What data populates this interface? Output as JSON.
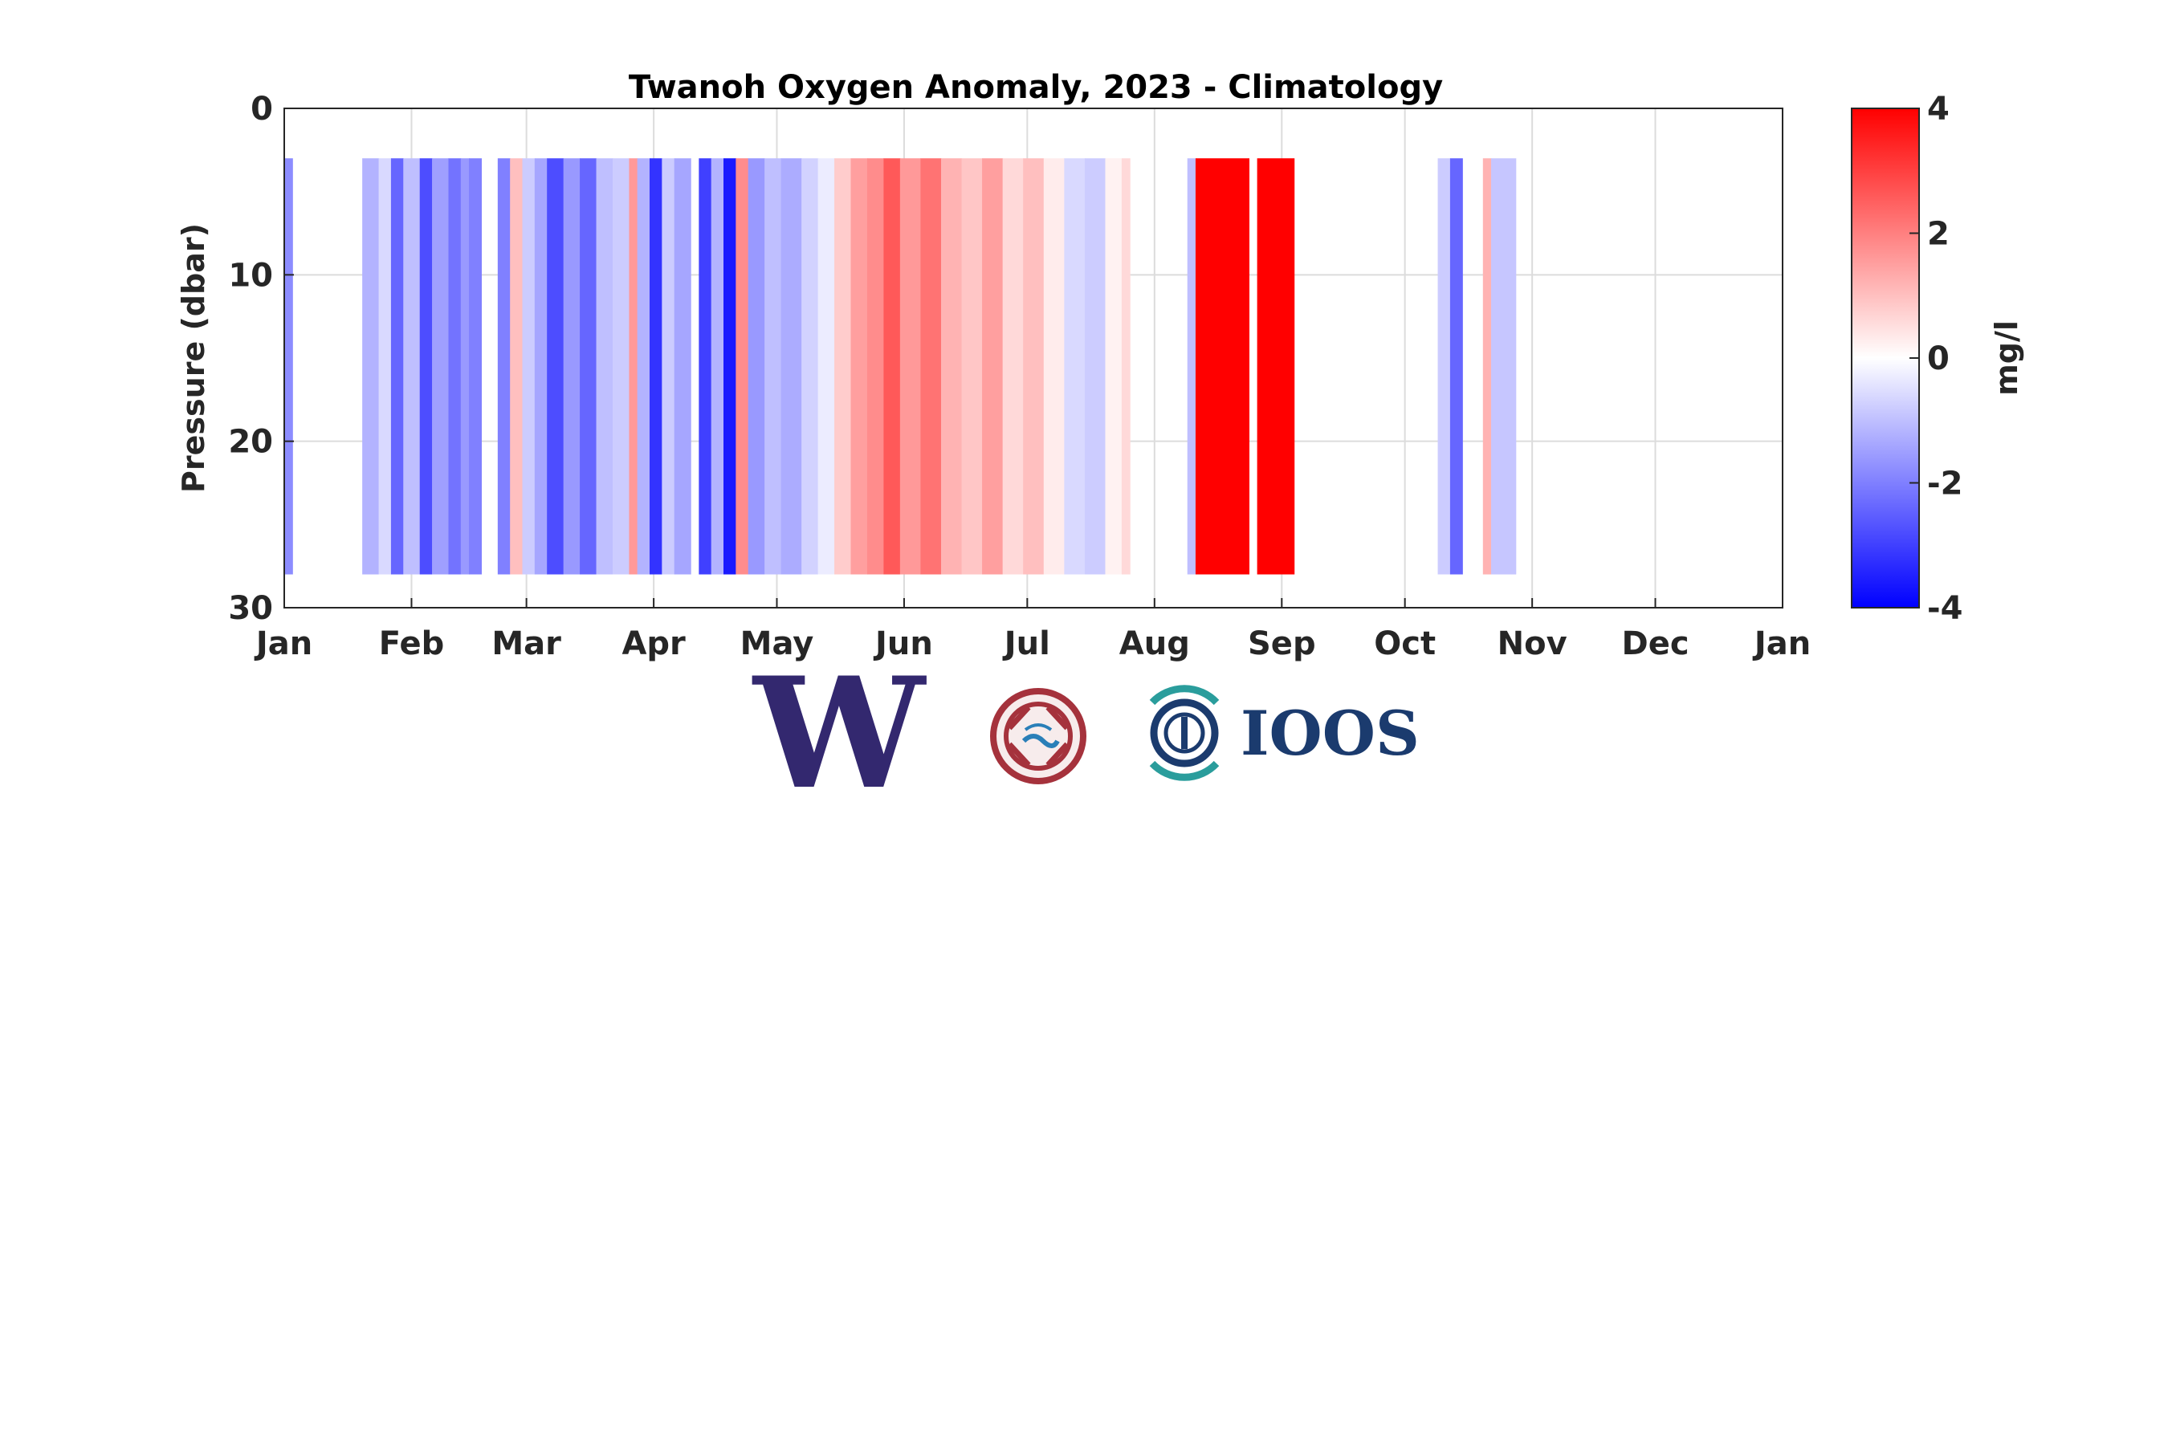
{
  "chart_data": {
    "type": "heatmap",
    "title": "Twanoh Oxygen Anomaly, 2023 - Climatology",
    "xlabel": "",
    "ylabel": "Pressure (dbar)",
    "x_ticks": [
      "Jan",
      "Feb",
      "Mar",
      "Apr",
      "May",
      "Jun",
      "Jul",
      "Aug",
      "Sep",
      "Oct",
      "Nov",
      "Dec",
      "Jan"
    ],
    "y_ticks": [
      "0",
      "10",
      "20",
      "30"
    ],
    "ylim": [
      0,
      30
    ],
    "y_reversed": true,
    "grid": true,
    "colorbar": {
      "label": "mg/l",
      "ticks": [
        "4",
        "2",
        "0",
        "-2",
        "-4"
      ],
      "range": [
        -4,
        4
      ],
      "colormap": "blue-white-red",
      "low_color": "#0000ff",
      "mid_color": "#ffffff",
      "high_color": "#ff0000"
    },
    "depth_range_dbar": [
      3,
      28
    ],
    "segments": [
      {
        "start_day": 0,
        "end_day": 2,
        "anomaly_mg_l": -1.8
      },
      {
        "start_day": 2,
        "end_day": 19,
        "anomaly_mg_l": null
      },
      {
        "start_day": 19,
        "end_day": 23,
        "anomaly_mg_l": -1.2
      },
      {
        "start_day": 23,
        "end_day": 26,
        "anomaly_mg_l": -0.6
      },
      {
        "start_day": 26,
        "end_day": 29,
        "anomaly_mg_l": -2.4
      },
      {
        "start_day": 29,
        "end_day": 33,
        "anomaly_mg_l": -1.0
      },
      {
        "start_day": 33,
        "end_day": 36,
        "anomaly_mg_l": -2.8
      },
      {
        "start_day": 36,
        "end_day": 40,
        "anomaly_mg_l": -1.5
      },
      {
        "start_day": 40,
        "end_day": 43,
        "anomaly_mg_l": -2.2
      },
      {
        "start_day": 43,
        "end_day": 45,
        "anomaly_mg_l": -1.6
      },
      {
        "start_day": 45,
        "end_day": 48,
        "anomaly_mg_l": -2.0
      },
      {
        "start_day": 48,
        "end_day": 52,
        "anomaly_mg_l": null
      },
      {
        "start_day": 52,
        "end_day": 55,
        "anomaly_mg_l": -2.0
      },
      {
        "start_day": 55,
        "end_day": 58,
        "anomaly_mg_l": 1.0
      },
      {
        "start_day": 58,
        "end_day": 61,
        "anomaly_mg_l": -0.8
      },
      {
        "start_day": 61,
        "end_day": 64,
        "anomaly_mg_l": -1.4
      },
      {
        "start_day": 64,
        "end_day": 68,
        "anomaly_mg_l": -2.8
      },
      {
        "start_day": 68,
        "end_day": 72,
        "anomaly_mg_l": -1.6
      },
      {
        "start_day": 72,
        "end_day": 76,
        "anomaly_mg_l": -2.4
      },
      {
        "start_day": 76,
        "end_day": 80,
        "anomaly_mg_l": -1.0
      },
      {
        "start_day": 80,
        "end_day": 84,
        "anomaly_mg_l": -0.8
      },
      {
        "start_day": 84,
        "end_day": 86,
        "anomaly_mg_l": 1.6
      },
      {
        "start_day": 86,
        "end_day": 89,
        "anomaly_mg_l": -1.2
      },
      {
        "start_day": 89,
        "end_day": 92,
        "anomaly_mg_l": -3.2
      },
      {
        "start_day": 92,
        "end_day": 95,
        "anomaly_mg_l": -0.8
      },
      {
        "start_day": 95,
        "end_day": 99,
        "anomaly_mg_l": -1.4
      },
      {
        "start_day": 99,
        "end_day": 101,
        "anomaly_mg_l": null
      },
      {
        "start_day": 101,
        "end_day": 104,
        "anomaly_mg_l": -3.0
      },
      {
        "start_day": 104,
        "end_day": 107,
        "anomaly_mg_l": -1.2
      },
      {
        "start_day": 107,
        "end_day": 110,
        "anomaly_mg_l": -3.6
      },
      {
        "start_day": 110,
        "end_day": 113,
        "anomaly_mg_l": 1.8
      },
      {
        "start_day": 113,
        "end_day": 117,
        "anomaly_mg_l": -1.6
      },
      {
        "start_day": 117,
        "end_day": 121,
        "anomaly_mg_l": -1.0
      },
      {
        "start_day": 121,
        "end_day": 126,
        "anomaly_mg_l": -1.3
      },
      {
        "start_day": 126,
        "end_day": 130,
        "anomaly_mg_l": -0.7
      },
      {
        "start_day": 130,
        "end_day": 134,
        "anomaly_mg_l": -0.3
      },
      {
        "start_day": 134,
        "end_day": 138,
        "anomaly_mg_l": 0.8
      },
      {
        "start_day": 138,
        "end_day": 142,
        "anomaly_mg_l": 1.5
      },
      {
        "start_day": 142,
        "end_day": 146,
        "anomaly_mg_l": 1.8
      },
      {
        "start_day": 146,
        "end_day": 150,
        "anomaly_mg_l": 2.6
      },
      {
        "start_day": 150,
        "end_day": 155,
        "anomaly_mg_l": 1.6
      },
      {
        "start_day": 155,
        "end_day": 160,
        "anomaly_mg_l": 2.2
      },
      {
        "start_day": 160,
        "end_day": 165,
        "anomaly_mg_l": 1.2
      },
      {
        "start_day": 165,
        "end_day": 170,
        "anomaly_mg_l": 0.9
      },
      {
        "start_day": 170,
        "end_day": 175,
        "anomaly_mg_l": 1.5
      },
      {
        "start_day": 175,
        "end_day": 180,
        "anomaly_mg_l": 0.6
      },
      {
        "start_day": 180,
        "end_day": 185,
        "anomaly_mg_l": 1.0
      },
      {
        "start_day": 185,
        "end_day": 190,
        "anomaly_mg_l": 0.3
      },
      {
        "start_day": 190,
        "end_day": 195,
        "anomaly_mg_l": -0.6
      },
      {
        "start_day": 195,
        "end_day": 200,
        "anomaly_mg_l": -0.8
      },
      {
        "start_day": 200,
        "end_day": 204,
        "anomaly_mg_l": 0.2
      },
      {
        "start_day": 204,
        "end_day": 206,
        "anomaly_mg_l": 0.6
      },
      {
        "start_day": 206,
        "end_day": 220,
        "anomaly_mg_l": null
      },
      {
        "start_day": 220,
        "end_day": 222,
        "anomaly_mg_l": -1.0
      },
      {
        "start_day": 222,
        "end_day": 235,
        "anomaly_mg_l": 4.0
      },
      {
        "start_day": 235,
        "end_day": 237,
        "anomaly_mg_l": null
      },
      {
        "start_day": 237,
        "end_day": 246,
        "anomaly_mg_l": 4.0
      },
      {
        "start_day": 246,
        "end_day": 281,
        "anomaly_mg_l": null
      },
      {
        "start_day": 281,
        "end_day": 284,
        "anomaly_mg_l": -0.8
      },
      {
        "start_day": 284,
        "end_day": 287,
        "anomaly_mg_l": -2.4
      },
      {
        "start_day": 287,
        "end_day": 292,
        "anomaly_mg_l": null
      },
      {
        "start_day": 292,
        "end_day": 294,
        "anomaly_mg_l": 1.2
      },
      {
        "start_day": 294,
        "end_day": 300,
        "anomaly_mg_l": -0.9
      }
    ]
  },
  "logos": [
    {
      "name": "uw-w-logo",
      "text": "W",
      "color": "#33286f"
    },
    {
      "name": "tribal-seal-logo",
      "text": "",
      "color": "#a5323c"
    },
    {
      "name": "ioos-logo",
      "text": "IOOS",
      "color": "#1b3b6e",
      "accent": "#2a9d9c"
    }
  ]
}
